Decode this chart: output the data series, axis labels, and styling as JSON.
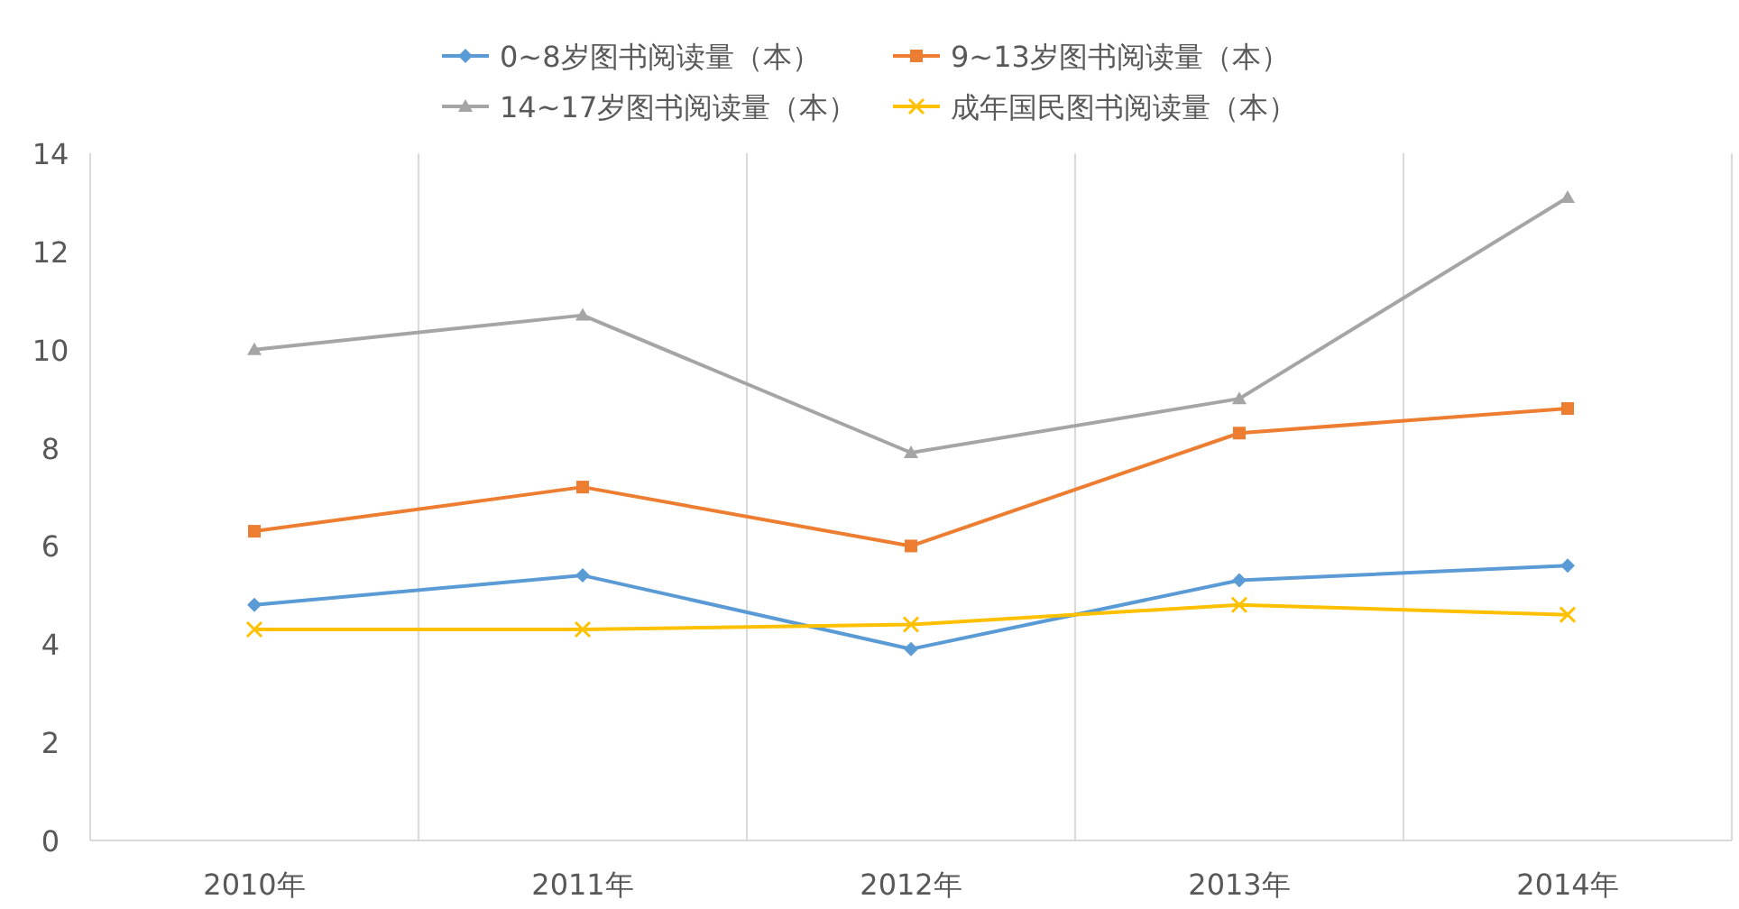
{
  "chart_data": {
    "type": "line",
    "categories": [
      "2010年",
      "2011年",
      "2012年",
      "2013年",
      "2014年"
    ],
    "series": [
      {
        "name": "0~8岁图书阅读量（本）",
        "color": "#5b9bd5",
        "marker": "diamond",
        "values": [
          4.8,
          5.4,
          3.9,
          5.3,
          5.6
        ]
      },
      {
        "name": "9~13岁图书阅读量（本）",
        "color": "#ed7d31",
        "marker": "square",
        "values": [
          6.3,
          7.2,
          6.0,
          8.3,
          8.8
        ]
      },
      {
        "name": "14~17岁图书阅读量（本）",
        "color": "#a5a5a5",
        "marker": "triangle",
        "values": [
          10.0,
          10.7,
          7.9,
          9.0,
          13.1
        ]
      },
      {
        "name": "成年国民图书阅读量（本）",
        "color": "#ffc000",
        "marker": "cross",
        "values": [
          4.3,
          4.3,
          4.4,
          4.8,
          4.6
        ]
      }
    ],
    "ylim": [
      0,
      14
    ],
    "yticks": [
      0,
      2,
      4,
      6,
      8,
      10,
      12,
      14
    ],
    "grid": "x",
    "legend": "top"
  }
}
